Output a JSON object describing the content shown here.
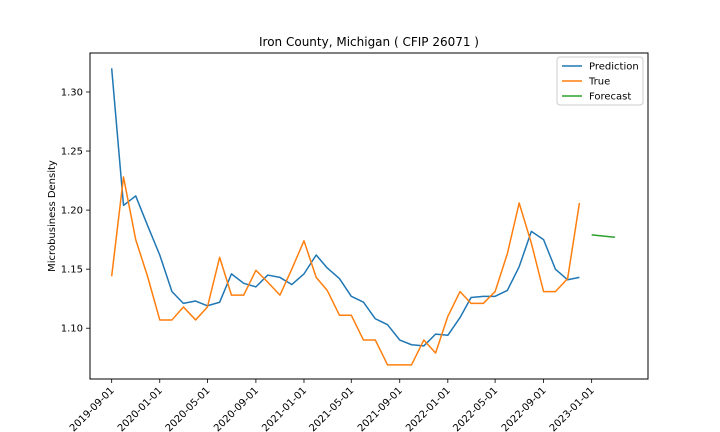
{
  "chart_data": {
    "type": "line",
    "title": "Iron County, Michigan ( CFIP 26071 )",
    "xlabel": "",
    "ylabel": "Microbusiness Density",
    "xlim": [
      "2019-07-08",
      "2023-05-24"
    ],
    "ylim": [
      1.057,
      1.333
    ],
    "grid": false,
    "legend_position": "top-right",
    "x_ticks": [
      "2019-09-01",
      "2020-01-01",
      "2020-05-01",
      "2020-09-01",
      "2021-01-01",
      "2021-05-01",
      "2021-09-01",
      "2022-01-01",
      "2022-05-01",
      "2022-09-01",
      "2023-01-01"
    ],
    "y_ticks": [
      1.1,
      1.15,
      1.2,
      1.25,
      1.3
    ],
    "y_tick_labels": [
      "1.10",
      "1.15",
      "1.20",
      "1.25",
      "1.30"
    ],
    "series": [
      {
        "name": "Prediction",
        "color": "#1f77b4",
        "x": [
          "2019-09-01",
          "2019-10-01",
          "2019-11-01",
          "2019-12-01",
          "2020-01-01",
          "2020-02-01",
          "2020-03-01",
          "2020-04-01",
          "2020-05-01",
          "2020-06-01",
          "2020-07-01",
          "2020-08-01",
          "2020-09-01",
          "2020-10-01",
          "2020-11-01",
          "2020-12-01",
          "2021-01-01",
          "2021-02-01",
          "2021-03-01",
          "2021-04-01",
          "2021-05-01",
          "2021-06-01",
          "2021-07-01",
          "2021-08-01",
          "2021-09-01",
          "2021-10-01",
          "2021-11-01",
          "2021-12-01",
          "2022-01-01",
          "2022-02-01",
          "2022-03-01",
          "2022-04-01",
          "2022-05-01",
          "2022-06-01",
          "2022-07-01",
          "2022-08-01",
          "2022-09-01",
          "2022-10-01",
          "2022-11-01",
          "2022-12-01"
        ],
        "values": [
          1.32,
          1.204,
          1.212,
          1.187,
          1.162,
          1.131,
          1.121,
          1.123,
          1.119,
          1.122,
          1.146,
          1.138,
          1.135,
          1.145,
          1.143,
          1.137,
          1.146,
          1.162,
          1.151,
          1.142,
          1.127,
          1.122,
          1.108,
          1.103,
          1.09,
          1.086,
          1.085,
          1.095,
          1.094,
          1.109,
          1.126,
          1.127,
          1.127,
          1.132,
          1.152,
          1.182,
          1.175,
          1.15,
          1.141,
          1.143
        ]
      },
      {
        "name": "True",
        "color": "#ff7f0e",
        "x": [
          "2019-09-01",
          "2019-10-01",
          "2019-11-01",
          "2019-12-01",
          "2020-01-01",
          "2020-02-01",
          "2020-03-01",
          "2020-04-01",
          "2020-05-01",
          "2020-06-01",
          "2020-07-01",
          "2020-08-01",
          "2020-09-01",
          "2020-10-01",
          "2020-11-01",
          "2020-12-01",
          "2021-01-01",
          "2021-02-01",
          "2021-03-01",
          "2021-04-01",
          "2021-05-01",
          "2021-06-01",
          "2021-07-01",
          "2021-08-01",
          "2021-09-01",
          "2021-10-01",
          "2021-11-01",
          "2021-12-01",
          "2022-01-01",
          "2022-02-01",
          "2022-03-01",
          "2022-04-01",
          "2022-05-01",
          "2022-06-01",
          "2022-07-01",
          "2022-08-01",
          "2022-09-01",
          "2022-10-01",
          "2022-11-01",
          "2022-12-01"
        ],
        "values": [
          1.144,
          1.228,
          1.175,
          1.144,
          1.107,
          1.107,
          1.118,
          1.107,
          1.118,
          1.16,
          1.128,
          1.128,
          1.149,
          1.139,
          1.128,
          1.15,
          1.174,
          1.143,
          1.132,
          1.111,
          1.111,
          1.09,
          1.09,
          1.069,
          1.069,
          1.069,
          1.09,
          1.079,
          1.11,
          1.131,
          1.121,
          1.121,
          1.131,
          1.163,
          1.206,
          1.172,
          1.131,
          1.131,
          1.142,
          1.206
        ]
      },
      {
        "name": "Forecast",
        "color": "#2ca02c",
        "x": [
          "2023-01-01",
          "2023-02-01",
          "2023-03-01"
        ],
        "values": [
          1.179,
          1.178,
          1.177
        ]
      }
    ]
  }
}
